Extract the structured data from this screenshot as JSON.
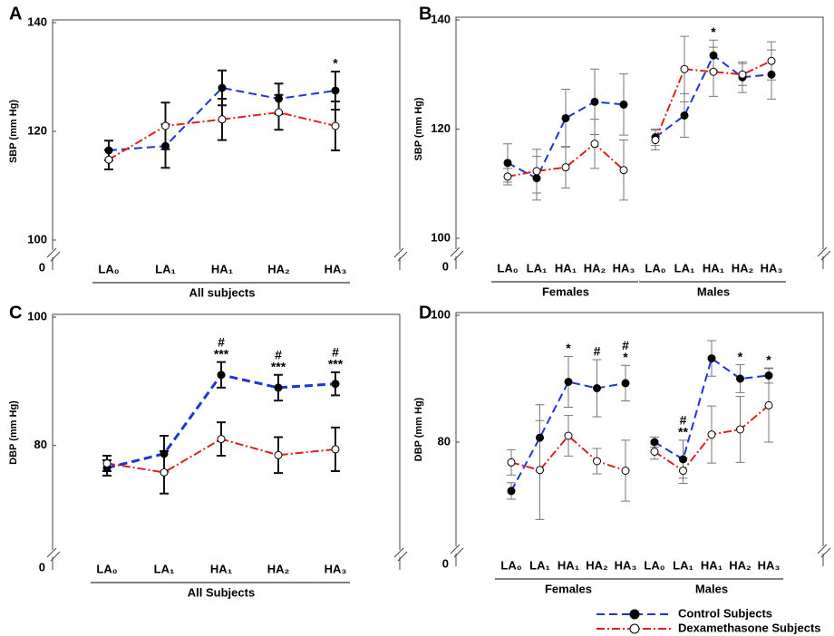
{
  "legend": [
    {
      "name": "Control Subjects",
      "color": "#1a35d6"
    },
    {
      "name": "Dexamethasone Subjects",
      "color": "#e0201b"
    }
  ],
  "chart_data": [
    {
      "type": "line",
      "panel": "A",
      "ylabel": "SBP (mm Hg)",
      "ylim": [
        100,
        140
      ],
      "yticks": [
        100,
        120,
        140
      ],
      "ybreak_tick": 0,
      "groups": [
        {
          "label": "All subjects",
          "categories": [
            "LA₀",
            "LA₁",
            "HA₁",
            "HA₂",
            "HA₃"
          ],
          "series": [
            {
              "values": [
                116.5,
                117.3,
                128,
                126,
                127.5
              ],
              "errors": [
                1.8,
                4,
                3.2,
                2.8,
                3.5
              ]
            },
            {
              "values": [
                114.8,
                121,
                122.2,
                123.5,
                121
              ],
              "errors": [
                1.8,
                4.3,
                3.8,
                3.2,
                4.5
              ]
            }
          ],
          "annotations": [
            null,
            null,
            null,
            null,
            [
              "*"
            ]
          ]
        }
      ]
    },
    {
      "type": "line",
      "panel": "B",
      "ylabel": "SBP (mm Hg)",
      "ylim": [
        100,
        140
      ],
      "yticks": [
        100,
        120,
        140
      ],
      "ybreak_tick": 0,
      "groups": [
        {
          "label": "Females",
          "categories": [
            "LA₀",
            "LA₁",
            "HA₁",
            "HA₂",
            "HA₃"
          ],
          "series": [
            {
              "values": [
                113.8,
                111,
                122,
                125,
                124.5
              ],
              "errors": [
                3.5,
                4,
                5.3,
                6,
                5.6
              ]
            },
            {
              "values": [
                111.3,
                112.3,
                113,
                117.3,
                112.5
              ],
              "errors": [
                1.5,
                4,
                3.8,
                4.5,
                5.5
              ]
            }
          ],
          "annotations": [
            null,
            null,
            null,
            null,
            null
          ]
        },
        {
          "label": "Males",
          "categories": [
            "LA₀",
            "LA₁",
            "HA₁",
            "HA₂",
            "HA₃"
          ],
          "series": [
            {
              "values": [
                118.5,
                122.5,
                133.5,
                129.5,
                130
              ],
              "errors": [
                1.5,
                4,
                2.8,
                2.8,
                4.5
              ]
            },
            {
              "values": [
                118,
                131,
                130.5,
                130,
                132.5
              ],
              "errors": [
                1.8,
                6,
                4.5,
                2,
                3.5
              ]
            }
          ],
          "annotations": [
            null,
            null,
            [
              "*"
            ],
            null,
            null
          ]
        }
      ]
    },
    {
      "type": "line",
      "panel": "C",
      "ylabel": "DBP (mm Hg)",
      "ylim": [
        64,
        100
      ],
      "yticks": [
        80,
        100
      ],
      "ybreak_tick": 0,
      "groups": [
        {
          "label": "All Subjects",
          "categories": [
            "LA₀",
            "LA₁",
            "HA₁",
            "HA₂",
            "HA₃"
          ],
          "series": [
            {
              "values": [
                76.5,
                78.7,
                91,
                89,
                89.6
              ],
              "errors": [
                1.2,
                2.8,
                2,
                2,
                1.8
              ]
            },
            {
              "values": [
                77.2,
                75.8,
                81,
                78.5,
                79.4
              ],
              "errors": [
                1.2,
                3.3,
                2.6,
                2.8,
                3.4
              ]
            }
          ],
          "annotations": [
            null,
            null,
            [
              "#",
              "***"
            ],
            [
              "#",
              "***"
            ],
            [
              "#",
              "***"
            ]
          ]
        }
      ]
    },
    {
      "type": "line",
      "panel": "D",
      "ylabel": "DBP (mm Hg)",
      "ylim": [
        64,
        100
      ],
      "yticks": [
        80,
        100
      ],
      "ybreak_tick": 0,
      "groups": [
        {
          "label": "Females",
          "categories": [
            "LA₀",
            "LA₁",
            "HA₁",
            "HA₂",
            "HA₃"
          ],
          "series": [
            {
              "values": [
                72.3,
                80.7,
                89.5,
                88.5,
                89.3
              ],
              "errors": [
                1.3,
                5.2,
                4,
                4.5,
                2.8
              ]
            },
            {
              "values": [
                76.8,
                75.6,
                81,
                77,
                75.5
              ],
              "errors": [
                2,
                7.8,
                3.2,
                2,
                4.8
              ]
            }
          ],
          "annotations": [
            null,
            null,
            [
              "*"
            ],
            [
              "#"
            ],
            [
              "#",
              "*"
            ]
          ]
        },
        {
          "label": "Males",
          "categories": [
            "LA₀",
            "LA₁",
            "HA₁",
            "HA₂",
            "HA₃"
          ],
          "series": [
            {
              "values": [
                80,
                77.3,
                93.2,
                90,
                90.5
              ],
              "errors": [
                0.8,
                3,
                2.8,
                2.2,
                1.2
              ]
            },
            {
              "values": [
                78.5,
                75.5,
                81.2,
                82,
                85.8
              ],
              "errors": [
                1.2,
                2,
                4.5,
                5.2,
                5.8
              ]
            }
          ],
          "annotations": [
            null,
            [
              "#",
              "**"
            ],
            null,
            [
              "*"
            ],
            [
              "*"
            ]
          ]
        }
      ]
    }
  ]
}
